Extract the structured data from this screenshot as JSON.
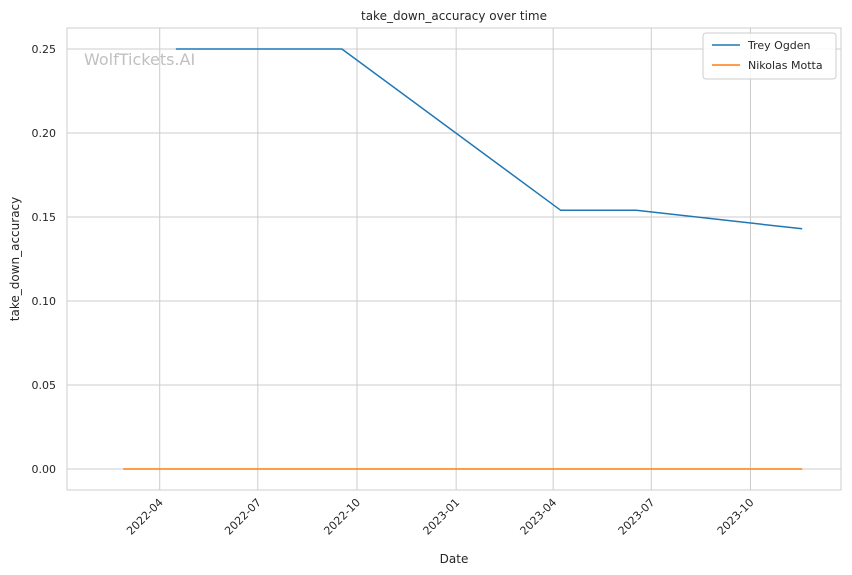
{
  "chart_data": {
    "type": "line",
    "title": "take_down_accuracy over time",
    "xlabel": "Date",
    "ylabel": "take_down_accuracy",
    "ylim": [
      -0.0125,
      0.2625
    ],
    "xlim": [
      "2022-01-05",
      "2023-12-24"
    ],
    "x_ticks": [
      "2022-04",
      "2022-07",
      "2022-10",
      "2023-01",
      "2023-04",
      "2023-07",
      "2023-10"
    ],
    "y_ticks": [
      "0.00",
      "0.05",
      "0.10",
      "0.15",
      "0.20",
      "0.25"
    ],
    "grid": true,
    "legend_position": "top-right",
    "watermark": "WolfTickets.AI",
    "series": [
      {
        "name": "Trey Ogden",
        "color": "#1f77b4",
        "points": [
          {
            "x": "2022-04-16",
            "y": 0.25
          },
          {
            "x": "2022-09-17",
            "y": 0.25
          },
          {
            "x": "2023-04-08",
            "y": 0.154
          },
          {
            "x": "2023-06-17",
            "y": 0.154
          },
          {
            "x": "2023-11-18",
            "y": 0.143
          }
        ]
      },
      {
        "name": "Nikolas Motta",
        "color": "#ff7f0e",
        "points": [
          {
            "x": "2022-02-26",
            "y": 0.0
          },
          {
            "x": "2023-11-18",
            "y": 0.0
          }
        ]
      }
    ]
  }
}
